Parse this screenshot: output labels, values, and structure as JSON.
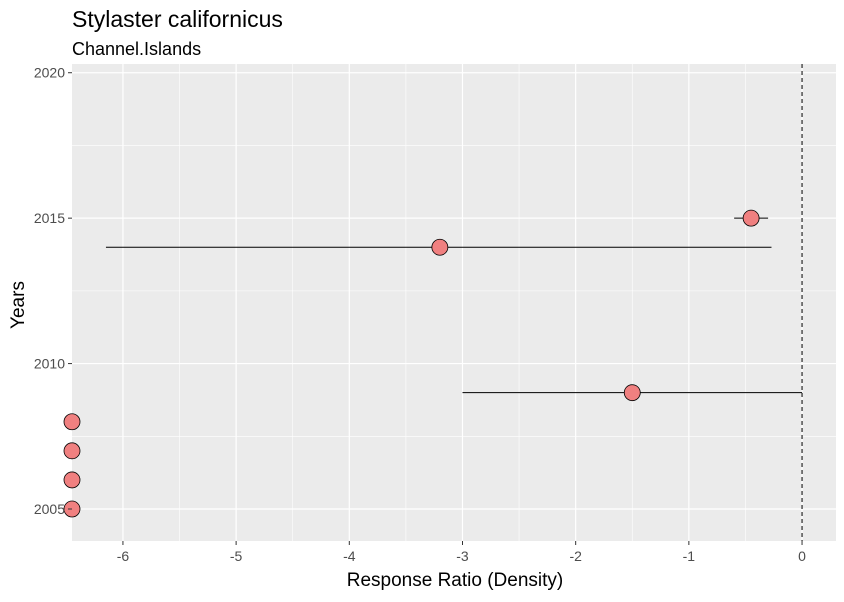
{
  "chart_data": {
    "type": "scatter",
    "title": "Stylaster californicus",
    "subtitle": "Channel.Islands",
    "xlabel": "Response Ratio (Density)",
    "ylabel": "Years",
    "xlim": [
      -6.45,
      0.3
    ],
    "ylim": [
      2003.9,
      2020.3
    ],
    "x_ticks": [
      -6,
      -5,
      -4,
      -3,
      -2,
      -1,
      0
    ],
    "y_ticks": [
      2005,
      2010,
      2015,
      2020
    ],
    "reference_line": {
      "x": 0,
      "style": "dashed"
    },
    "grid": true,
    "legend": "none",
    "points": [
      {
        "year": 2005,
        "x": -6.45
      },
      {
        "year": 2006,
        "x": -6.45
      },
      {
        "year": 2007,
        "x": -6.45
      },
      {
        "year": 2008,
        "x": -6.45
      },
      {
        "year": 2009,
        "x": -1.5,
        "xmin": -3.0,
        "xmax": 0.0
      },
      {
        "year": 2014,
        "x": -3.2,
        "xmin": -6.15,
        "xmax": -0.27
      },
      {
        "year": 2015,
        "x": -0.45,
        "xmin": -0.6,
        "xmax": -0.3
      }
    ],
    "colors": {
      "panel": "#ebebeb",
      "grid": "#ffffff",
      "point_fill": "#f08080",
      "point_stroke": "#000000",
      "errorbar": "#000000"
    }
  }
}
